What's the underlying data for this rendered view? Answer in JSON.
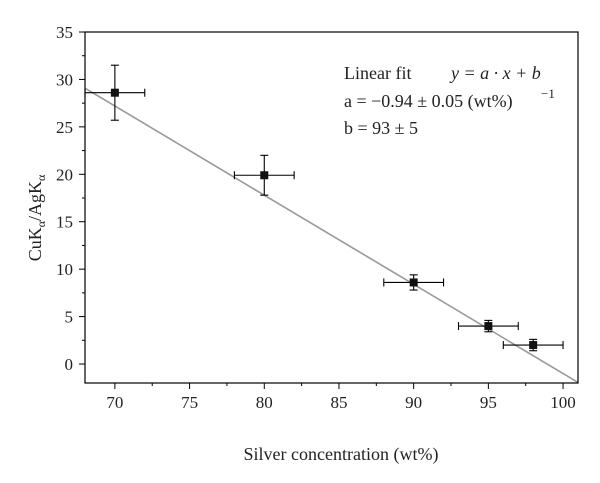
{
  "chart_data": {
    "type": "scatter",
    "title": "",
    "xlabel": "Silver concentration (wt%)",
    "ylabel": "CuKα/AgKα",
    "ylabel_parts": {
      "cu": "CuK",
      "ag": "/AgK",
      "sub": "α"
    },
    "xlim": [
      68,
      101
    ],
    "ylim": [
      -2,
      35
    ],
    "xticks": [
      70,
      75,
      80,
      85,
      90,
      95,
      100
    ],
    "yticks": [
      0,
      5,
      10,
      15,
      20,
      25,
      30,
      35
    ],
    "grid": false,
    "points": [
      {
        "x": 70,
        "y": 28.6,
        "xerr": 2,
        "yerr": 2.9
      },
      {
        "x": 80,
        "y": 19.9,
        "xerr": 2,
        "yerr": 2.1
      },
      {
        "x": 90,
        "y": 8.6,
        "xerr": 2,
        "yerr": 0.8
      },
      {
        "x": 95,
        "y": 4.0,
        "xerr": 2,
        "yerr": 0.6
      },
      {
        "x": 98,
        "y": 2.0,
        "xerr": 2,
        "yerr": 0.6
      }
    ],
    "fit": {
      "a": -0.94,
      "b": 93,
      "title": "Linear fit",
      "equation": "y = a · x + b",
      "a_text": "a = −0.94 ± 0.05 (wt%)",
      "a_exp": "−1",
      "b_text": "b = 93 ± 5"
    }
  },
  "colors": {
    "axis": "#000000",
    "marker": "#111111",
    "fit_line": "#999999"
  }
}
